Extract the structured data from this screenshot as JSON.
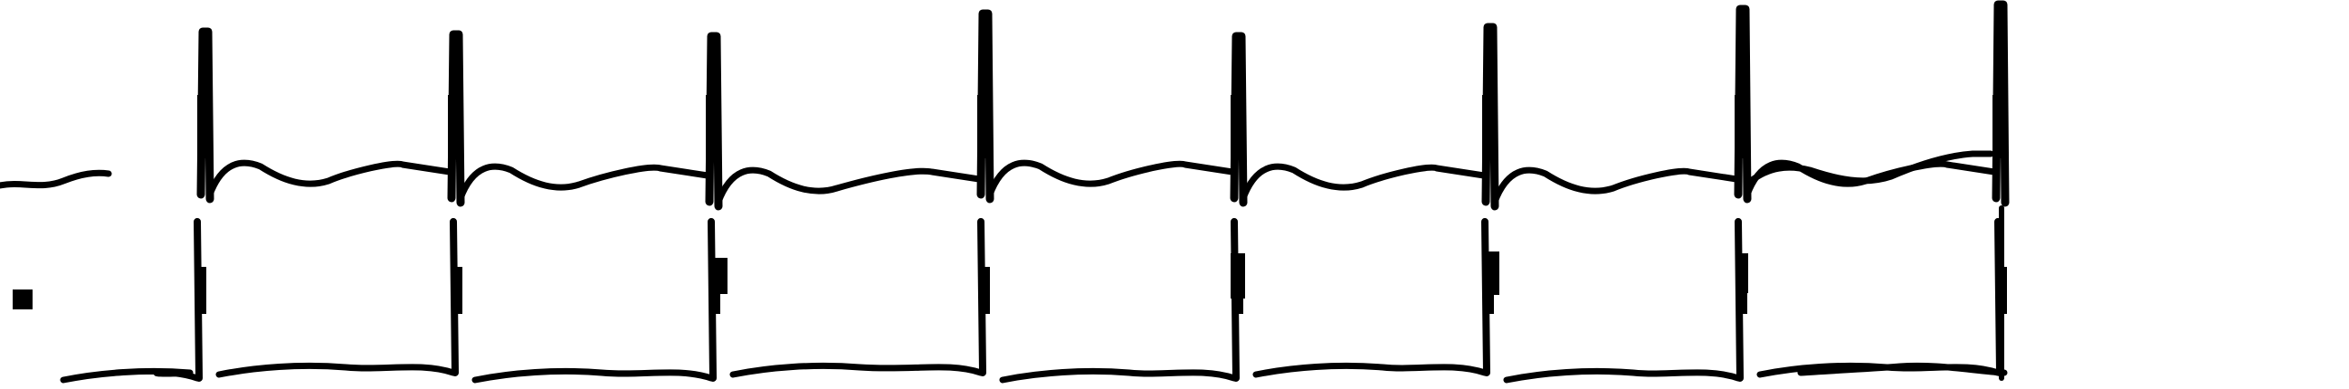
{
  "image": {
    "background_color": "#ffffff",
    "trace_color": "#000000",
    "leads": [
      {
        "beat_count": 8
      },
      {
        "beat_count": 8
      }
    ]
  }
}
